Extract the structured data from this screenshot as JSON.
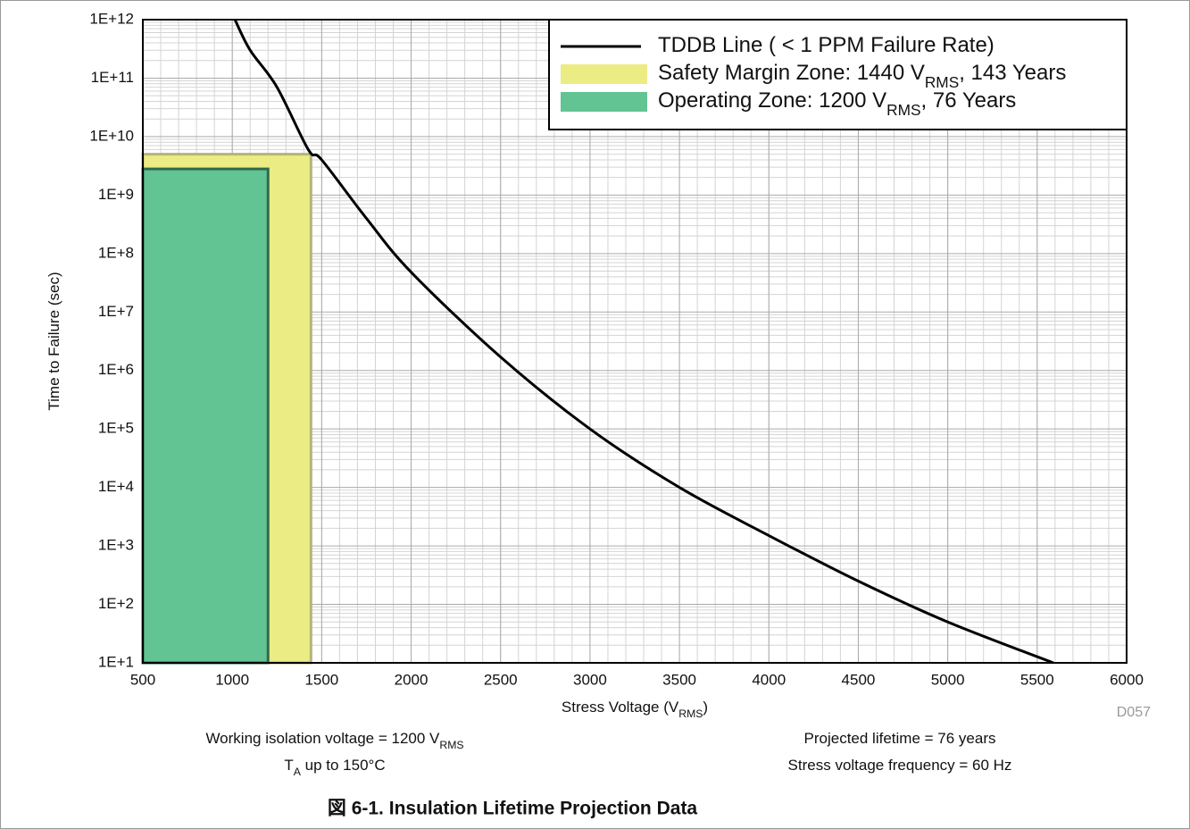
{
  "chart_data": {
    "type": "line",
    "title": "図 6-1. Insulation Lifetime Projection Data",
    "x_label": [
      "Stress Voltage (V",
      "RMS",
      ")"
    ],
    "y_label": [
      "Time to Failure (sec)"
    ],
    "log_y": true,
    "grid": true,
    "legend": "upper right",
    "xlim": [
      500,
      6000
    ],
    "xticks": [
      500,
      1000,
      1500,
      2000,
      2500,
      3000,
      3500,
      4000,
      4500,
      5000,
      5500,
      6000
    ],
    "ylim": [
      10,
      1000000000000
    ],
    "yticks": [
      {
        "value": 10,
        "label": "1E+1"
      },
      {
        "value": 100,
        "label": "1E+2"
      },
      {
        "value": 1000,
        "label": "1E+3"
      },
      {
        "value": 10000,
        "label": "1E+4"
      },
      {
        "value": 100000,
        "label": "1E+5"
      },
      {
        "value": 1000000,
        "label": "1E+6"
      },
      {
        "value": 10000000,
        "label": "1E+7"
      },
      {
        "value": 100000000,
        "label": "1E+8"
      },
      {
        "value": 1000000000,
        "label": "1E+9"
      },
      {
        "value": 10000000000,
        "label": "1E+10"
      },
      {
        "value": 100000000000,
        "label": "1E+11"
      },
      {
        "value": 1000000000000,
        "label": "1E+12"
      }
    ],
    "series": [
      {
        "name": [
          "TDDB Line ( < 1 PPM Failure Rate)"
        ],
        "color": "#000000",
        "x": [
          1015,
          1100,
          1250,
          1425,
          1500,
          1750,
          2000,
          2500,
          3000,
          3500,
          4000,
          4500,
          5000,
          5590
        ],
        "values": [
          1000000000000,
          300000000000,
          70000000000,
          6000000000,
          4000000000,
          400000000,
          48000000,
          1700000,
          100000,
          10000,
          1500,
          250,
          50,
          10
        ]
      }
    ],
    "zones": [
      {
        "name": [
          "Safety Margin Zone: 1440 V",
          "RMS",
          ", 143 Years"
        ],
        "color": "#ecec84",
        "edge": "#b4b47c",
        "x": [
          500,
          1440
        ],
        "values": [
          10,
          5000000000
        ]
      },
      {
        "name": [
          "Operating Zone: 1200 V",
          "RMS",
          ", 76 Years"
        ],
        "color": "#62c393",
        "edge": "#2f6a4b",
        "x": [
          500,
          1200
        ],
        "values": [
          10,
          2800000000
        ]
      }
    ],
    "annotations": [
      [
        "Working isolation voltage = 1200 V",
        "RMS"
      ],
      [
        "T",
        "A",
        " up to 150°C"
      ],
      [
        "Projected lifetime = 76 years"
      ],
      [
        "Stress voltage frequency = 60 Hz"
      ]
    ],
    "note": "D057"
  }
}
